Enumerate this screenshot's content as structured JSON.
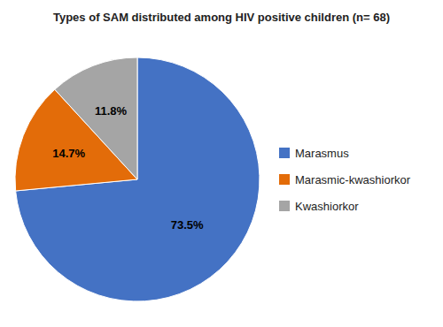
{
  "chart_data": {
    "type": "pie",
    "title": "Types of SAM distributed among HIV positive children (n= 68)",
    "categories": [
      "Marasmus",
      "Marasmic-kwashiorkor",
      "Kwashiorkor"
    ],
    "values": [
      73.5,
      14.7,
      11.8
    ],
    "value_labels": [
      "73.5%",
      "14.7%",
      "11.8%"
    ],
    "colors": [
      "#4472C4",
      "#E36C09",
      "#A5A5A5"
    ],
    "data_labels": true,
    "legend": "right"
  }
}
